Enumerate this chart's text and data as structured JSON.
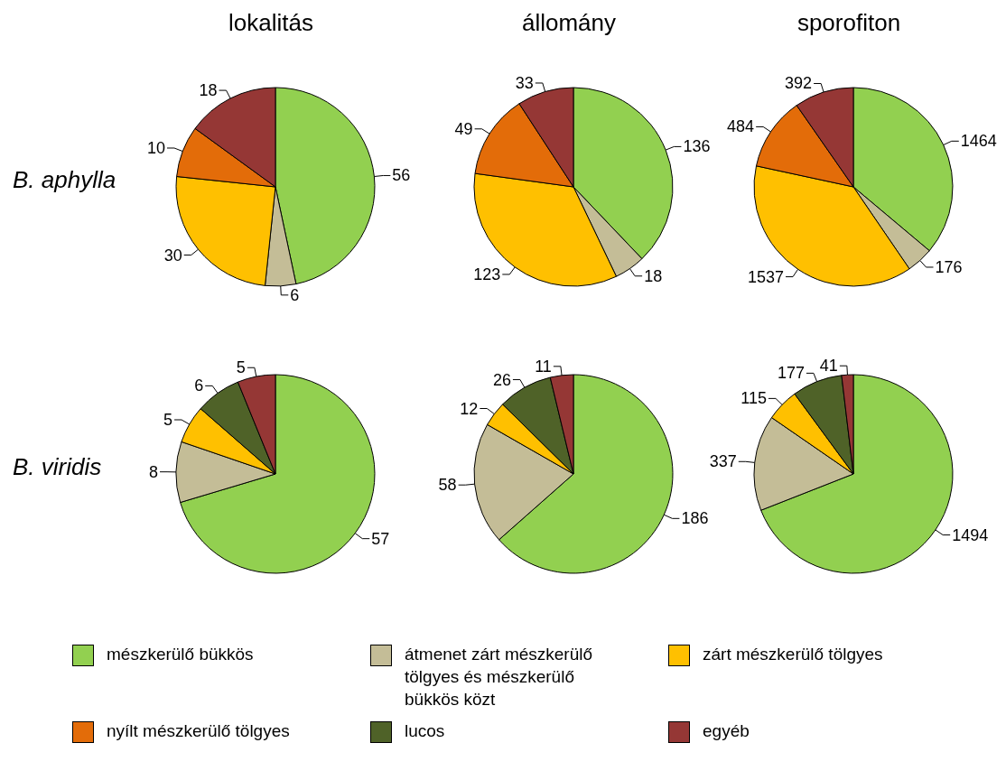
{
  "chart_data": [
    {
      "type": "pie",
      "title": "lokalitás",
      "ylabel": "B. aphylla",
      "categories": [
        "mészkerülő bükkös",
        "átmenet zárt mészkerülő tölgyes és mészkerülő bükkös közt",
        "zárt mészkerülő tölgyes",
        "nyílt mészkerülő tölgyes",
        "lucos",
        "egyéb"
      ],
      "values": [
        56,
        6,
        30,
        10,
        null,
        18
      ],
      "colors": [
        "#92d050",
        "#c4bd97",
        "#ffc000",
        "#e36c09",
        "#4f6228",
        "#953735"
      ],
      "data_labels": true,
      "legend": "bottom"
    },
    {
      "type": "pie",
      "title": "állomány",
      "categories": [
        null,
        null,
        null,
        null,
        null,
        null
      ],
      "values": [
        136,
        18,
        123,
        49,
        null,
        33
      ],
      "colors": [
        "#92d050",
        "#c4bd97",
        "#ffc000",
        "#e36c09",
        null,
        "#953735"
      ],
      "data_labels": true
    },
    {
      "type": "pie",
      "title": "sporofiton",
      "categories": [
        null,
        null,
        null,
        null,
        null,
        null
      ],
      "values": [
        1464,
        176,
        1537,
        484,
        null,
        392
      ],
      "colors": [
        "#92d050",
        "#c4bd97",
        "#ffc000",
        "#e36c09",
        null,
        "#953735"
      ],
      "data_labels": true
    },
    {
      "type": "pie",
      "ylabel": "B. viridis",
      "categories": [
        null,
        null,
        null,
        null,
        null,
        null
      ],
      "values": [
        57,
        8,
        5,
        null,
        6,
        5
      ],
      "colors": [
        "#92d050",
        "#c4bd97",
        "#ffc000",
        null,
        "#4f6228",
        "#953735"
      ],
      "data_labels": true
    },
    {
      "type": "pie",
      "categories": [
        null,
        null,
        null,
        null,
        null,
        null
      ],
      "values": [
        186,
        58,
        12,
        null,
        26,
        11
      ],
      "colors": [
        "#92d050",
        "#c4bd97",
        "#ffc000",
        null,
        "#4f6228",
        "#953735"
      ],
      "data_labels": true
    },
    {
      "type": "pie",
      "categories": [
        null,
        null,
        null,
        null,
        null,
        null
      ],
      "values": [
        1494,
        337,
        115,
        null,
        177,
        41
      ],
      "colors": [
        "#92d050",
        "#c4bd97",
        "#ffc000",
        null,
        "#4f6228",
        "#953735"
      ],
      "data_labels": true
    }
  ]
}
